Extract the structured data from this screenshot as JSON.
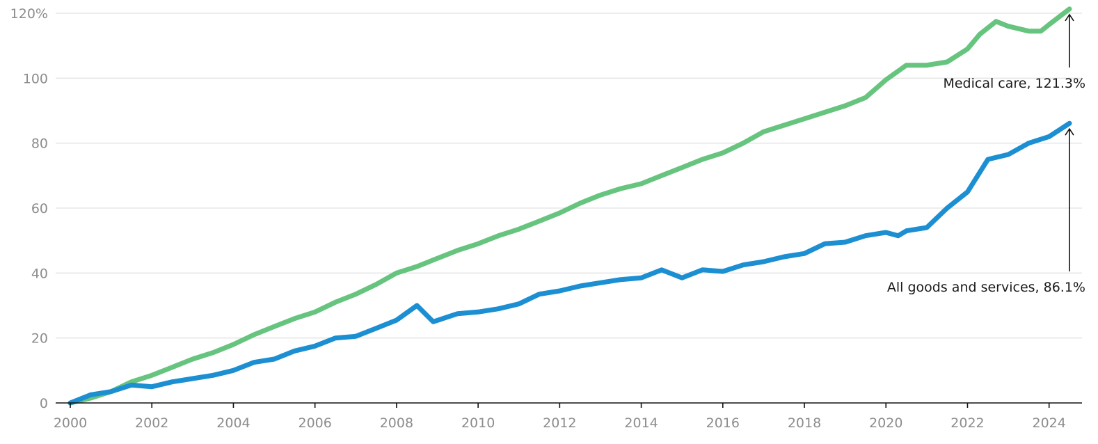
{
  "chart_data": {
    "type": "line",
    "title": "",
    "xlabel": "",
    "ylabel": "",
    "xlim": [
      2000,
      2024.5
    ],
    "ylim": [
      0,
      120
    ],
    "y_ticks": [
      {
        "value": 0,
        "label": "0"
      },
      {
        "value": 20,
        "label": "20"
      },
      {
        "value": 40,
        "label": "40"
      },
      {
        "value": 60,
        "label": "60"
      },
      {
        "value": 80,
        "label": "80"
      },
      {
        "value": 100,
        "label": "100"
      },
      {
        "value": 120,
        "label": "120%"
      }
    ],
    "x_ticks": [
      {
        "value": 2000,
        "label": "2000"
      },
      {
        "value": 2002,
        "label": "2002"
      },
      {
        "value": 2004,
        "label": "2004"
      },
      {
        "value": 2006,
        "label": "2006"
      },
      {
        "value": 2008,
        "label": "2008"
      },
      {
        "value": 2010,
        "label": "2010"
      },
      {
        "value": 2012,
        "label": "2012"
      },
      {
        "value": 2014,
        "label": "2014"
      },
      {
        "value": 2016,
        "label": "2016"
      },
      {
        "value": 2018,
        "label": "2018"
      },
      {
        "value": 2020,
        "label": "2020"
      },
      {
        "value": 2022,
        "label": "2022"
      },
      {
        "value": 2024,
        "label": "2024"
      }
    ],
    "grid": true,
    "series": [
      {
        "name": "Medical care",
        "color": "#66c47f",
        "end_label": "Medical care, 121.3%",
        "end_value": 121.3,
        "points": [
          [
            2000,
            0
          ],
          [
            2000.5,
            1.5
          ],
          [
            2001,
            3.5
          ],
          [
            2001.5,
            6.5
          ],
          [
            2002,
            8.5
          ],
          [
            2002.5,
            11
          ],
          [
            2003,
            13.5
          ],
          [
            2003.5,
            15.5
          ],
          [
            2004,
            18
          ],
          [
            2004.5,
            21
          ],
          [
            2005,
            23.5
          ],
          [
            2005.5,
            26
          ],
          [
            2006,
            28
          ],
          [
            2006.5,
            31
          ],
          [
            2007,
            33.5
          ],
          [
            2007.5,
            36.5
          ],
          [
            2008,
            40
          ],
          [
            2008.5,
            42
          ],
          [
            2009,
            44.5
          ],
          [
            2009.5,
            47
          ],
          [
            2010,
            49
          ],
          [
            2010.5,
            51.5
          ],
          [
            2011,
            53.5
          ],
          [
            2011.5,
            56
          ],
          [
            2012,
            58.5
          ],
          [
            2012.5,
            61.5
          ],
          [
            2013,
            64
          ],
          [
            2013.5,
            66
          ],
          [
            2014,
            67.5
          ],
          [
            2014.5,
            70
          ],
          [
            2015,
            72.5
          ],
          [
            2015.5,
            75
          ],
          [
            2016,
            77
          ],
          [
            2016.5,
            80
          ],
          [
            2017,
            83.5
          ],
          [
            2017.5,
            85.5
          ],
          [
            2018,
            87.5
          ],
          [
            2018.5,
            89.5
          ],
          [
            2019,
            91.5
          ],
          [
            2019.5,
            94
          ],
          [
            2020,
            99.5
          ],
          [
            2020.5,
            104
          ],
          [
            2021,
            104
          ],
          [
            2021.5,
            105
          ],
          [
            2022,
            109
          ],
          [
            2022.3,
            113.5
          ],
          [
            2022.7,
            117.5
          ],
          [
            2023,
            116
          ],
          [
            2023.5,
            114.5
          ],
          [
            2023.8,
            114.5
          ],
          [
            2024,
            116.5
          ],
          [
            2024.5,
            121.3
          ]
        ]
      },
      {
        "name": "All goods and services",
        "color": "#1c8fd2",
        "end_label": "All goods and services, 86.1%",
        "end_value": 86.1,
        "points": [
          [
            2000,
            0
          ],
          [
            2000.5,
            2.5
          ],
          [
            2001,
            3.5
          ],
          [
            2001.5,
            5.5
          ],
          [
            2002,
            5
          ],
          [
            2002.5,
            6.5
          ],
          [
            2003,
            7.5
          ],
          [
            2003.5,
            8.5
          ],
          [
            2004,
            10
          ],
          [
            2004.5,
            12.5
          ],
          [
            2005,
            13.5
          ],
          [
            2005.5,
            16
          ],
          [
            2006,
            17.5
          ],
          [
            2006.5,
            20
          ],
          [
            2007,
            20.5
          ],
          [
            2007.5,
            23
          ],
          [
            2008,
            25.5
          ],
          [
            2008.5,
            30
          ],
          [
            2008.9,
            25
          ],
          [
            2009.5,
            27.5
          ],
          [
            2010,
            28
          ],
          [
            2010.5,
            29
          ],
          [
            2011,
            30.5
          ],
          [
            2011.5,
            33.5
          ],
          [
            2012,
            34.5
          ],
          [
            2012.5,
            36
          ],
          [
            2013,
            37
          ],
          [
            2013.5,
            38
          ],
          [
            2014,
            38.5
          ],
          [
            2014.5,
            41
          ],
          [
            2015,
            38.5
          ],
          [
            2015.5,
            41
          ],
          [
            2016,
            40.5
          ],
          [
            2016.5,
            42.5
          ],
          [
            2017,
            43.5
          ],
          [
            2017.5,
            45
          ],
          [
            2018,
            46
          ],
          [
            2018.5,
            49
          ],
          [
            2019,
            49.5
          ],
          [
            2019.5,
            51.5
          ],
          [
            2020,
            52.5
          ],
          [
            2020.3,
            51.5
          ],
          [
            2020.5,
            53
          ],
          [
            2021,
            54
          ],
          [
            2021.5,
            60
          ],
          [
            2022,
            65
          ],
          [
            2022.5,
            75
          ],
          [
            2023,
            76.5
          ],
          [
            2023.5,
            80
          ],
          [
            2024,
            82
          ],
          [
            2024.5,
            86.1
          ]
        ]
      }
    ]
  }
}
